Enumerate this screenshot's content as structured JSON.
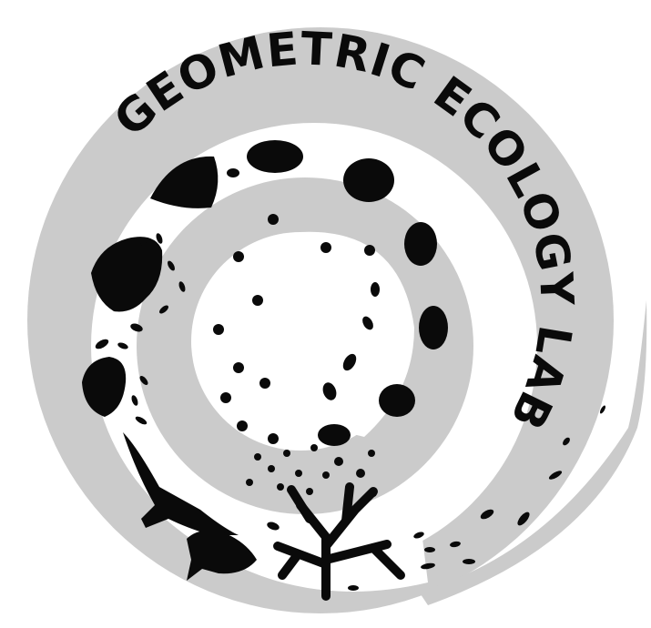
{
  "logo": {
    "text": "GEOMETRIC ECOLOGY LAB",
    "colors": {
      "swirl": "#cbcbcb",
      "ink": "#0a0a0a",
      "background": "#ffffff"
    },
    "icons": [
      "spiral-swirl-icon",
      "coral-icon",
      "fish-icon",
      "shark-icon",
      "grouper-fish-icon",
      "sea-anemone-icon"
    ]
  }
}
